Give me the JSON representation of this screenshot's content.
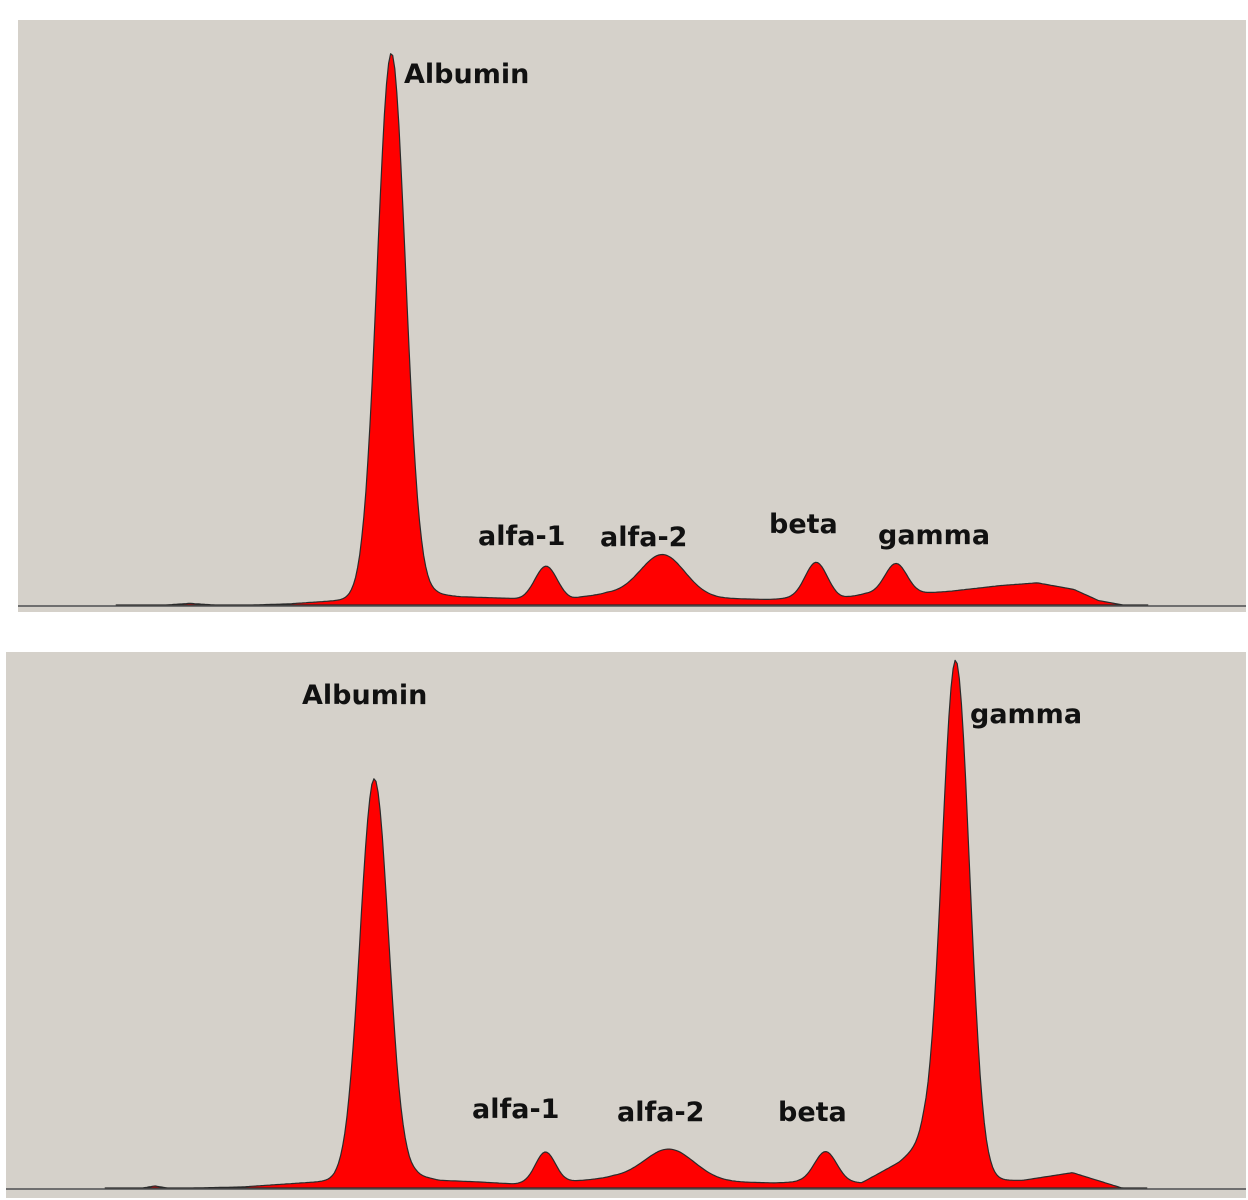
{
  "colors": {
    "panel_background": "#d5d1ca",
    "trace_fill": "#ff0000",
    "trace_outline": "#2b2b2b",
    "baseline": "#6f6f6f"
  },
  "chart_data": [
    {
      "type": "area",
      "title": "",
      "xlabel": "",
      "ylabel": "",
      "grid": false,
      "legend": "none",
      "peaks": [
        {
          "label": "Albumin",
          "center": 0.304,
          "height": 0.98,
          "width": 0.0115
        },
        {
          "label": "alfa-1",
          "center": 0.43,
          "height": 0.06,
          "width": 0.009
        },
        {
          "label": "alfa-2",
          "center": 0.525,
          "height": 0.075,
          "width": 0.018
        },
        {
          "label": "beta",
          "center": 0.65,
          "height": 0.065,
          "width": 0.009
        },
        {
          "label": "gamma",
          "center": 0.715,
          "height": 0.055,
          "width": 0.009
        }
      ],
      "profile": {
        "x": [
          0.08,
          0.12,
          0.14,
          0.16,
          0.19,
          0.22,
          0.34,
          0.36,
          0.4,
          0.41,
          0.45,
          0.46,
          0.48,
          0.57,
          0.61,
          0.63,
          0.67,
          0.69,
          0.73,
          0.76,
          0.8,
          0.83,
          0.86,
          0.88,
          0.9,
          0.92
        ],
        "y": [
          0,
          0,
          0.003,
          0,
          0,
          0.002,
          0.02,
          0.015,
          0.012,
          0.01,
          0.01,
          0.015,
          0.02,
          0.012,
          0.01,
          0.012,
          0.012,
          0.02,
          0.02,
          0.025,
          0.035,
          0.04,
          0.028,
          0.008,
          0,
          0
        ]
      }
    },
    {
      "type": "area",
      "title": "",
      "xlabel": "",
      "ylabel": "",
      "grid": false,
      "legend": "none",
      "peaks": [
        {
          "label": "Albumin",
          "center": 0.297,
          "height": 0.78,
          "width": 0.0115
        },
        {
          "label": "alfa-1",
          "center": 0.435,
          "height": 0.06,
          "width": 0.008
        },
        {
          "label": "alfa-2",
          "center": 0.535,
          "height": 0.06,
          "width": 0.02
        },
        {
          "label": "beta",
          "center": 0.661,
          "height": 0.06,
          "width": 0.009
        },
        {
          "label": "gamma",
          "center": 0.766,
          "height": 0.98,
          "width": 0.011
        }
      ],
      "profile": {
        "x": [
          0.08,
          0.11,
          0.12,
          0.13,
          0.15,
          0.19,
          0.33,
          0.35,
          0.38,
          0.41,
          0.45,
          0.47,
          0.49,
          0.58,
          0.62,
          0.64,
          0.69,
          0.72,
          0.74,
          0.79,
          0.82,
          0.86,
          0.88,
          0.9,
          0.92
        ],
        "y": [
          0,
          0,
          0.004,
          0,
          0,
          0.002,
          0.025,
          0.015,
          0.012,
          0.008,
          0.012,
          0.016,
          0.02,
          0.012,
          0.01,
          0.012,
          0.01,
          0.05,
          0.09,
          0.015,
          0.015,
          0.03,
          0.015,
          0,
          0
        ]
      }
    }
  ]
}
